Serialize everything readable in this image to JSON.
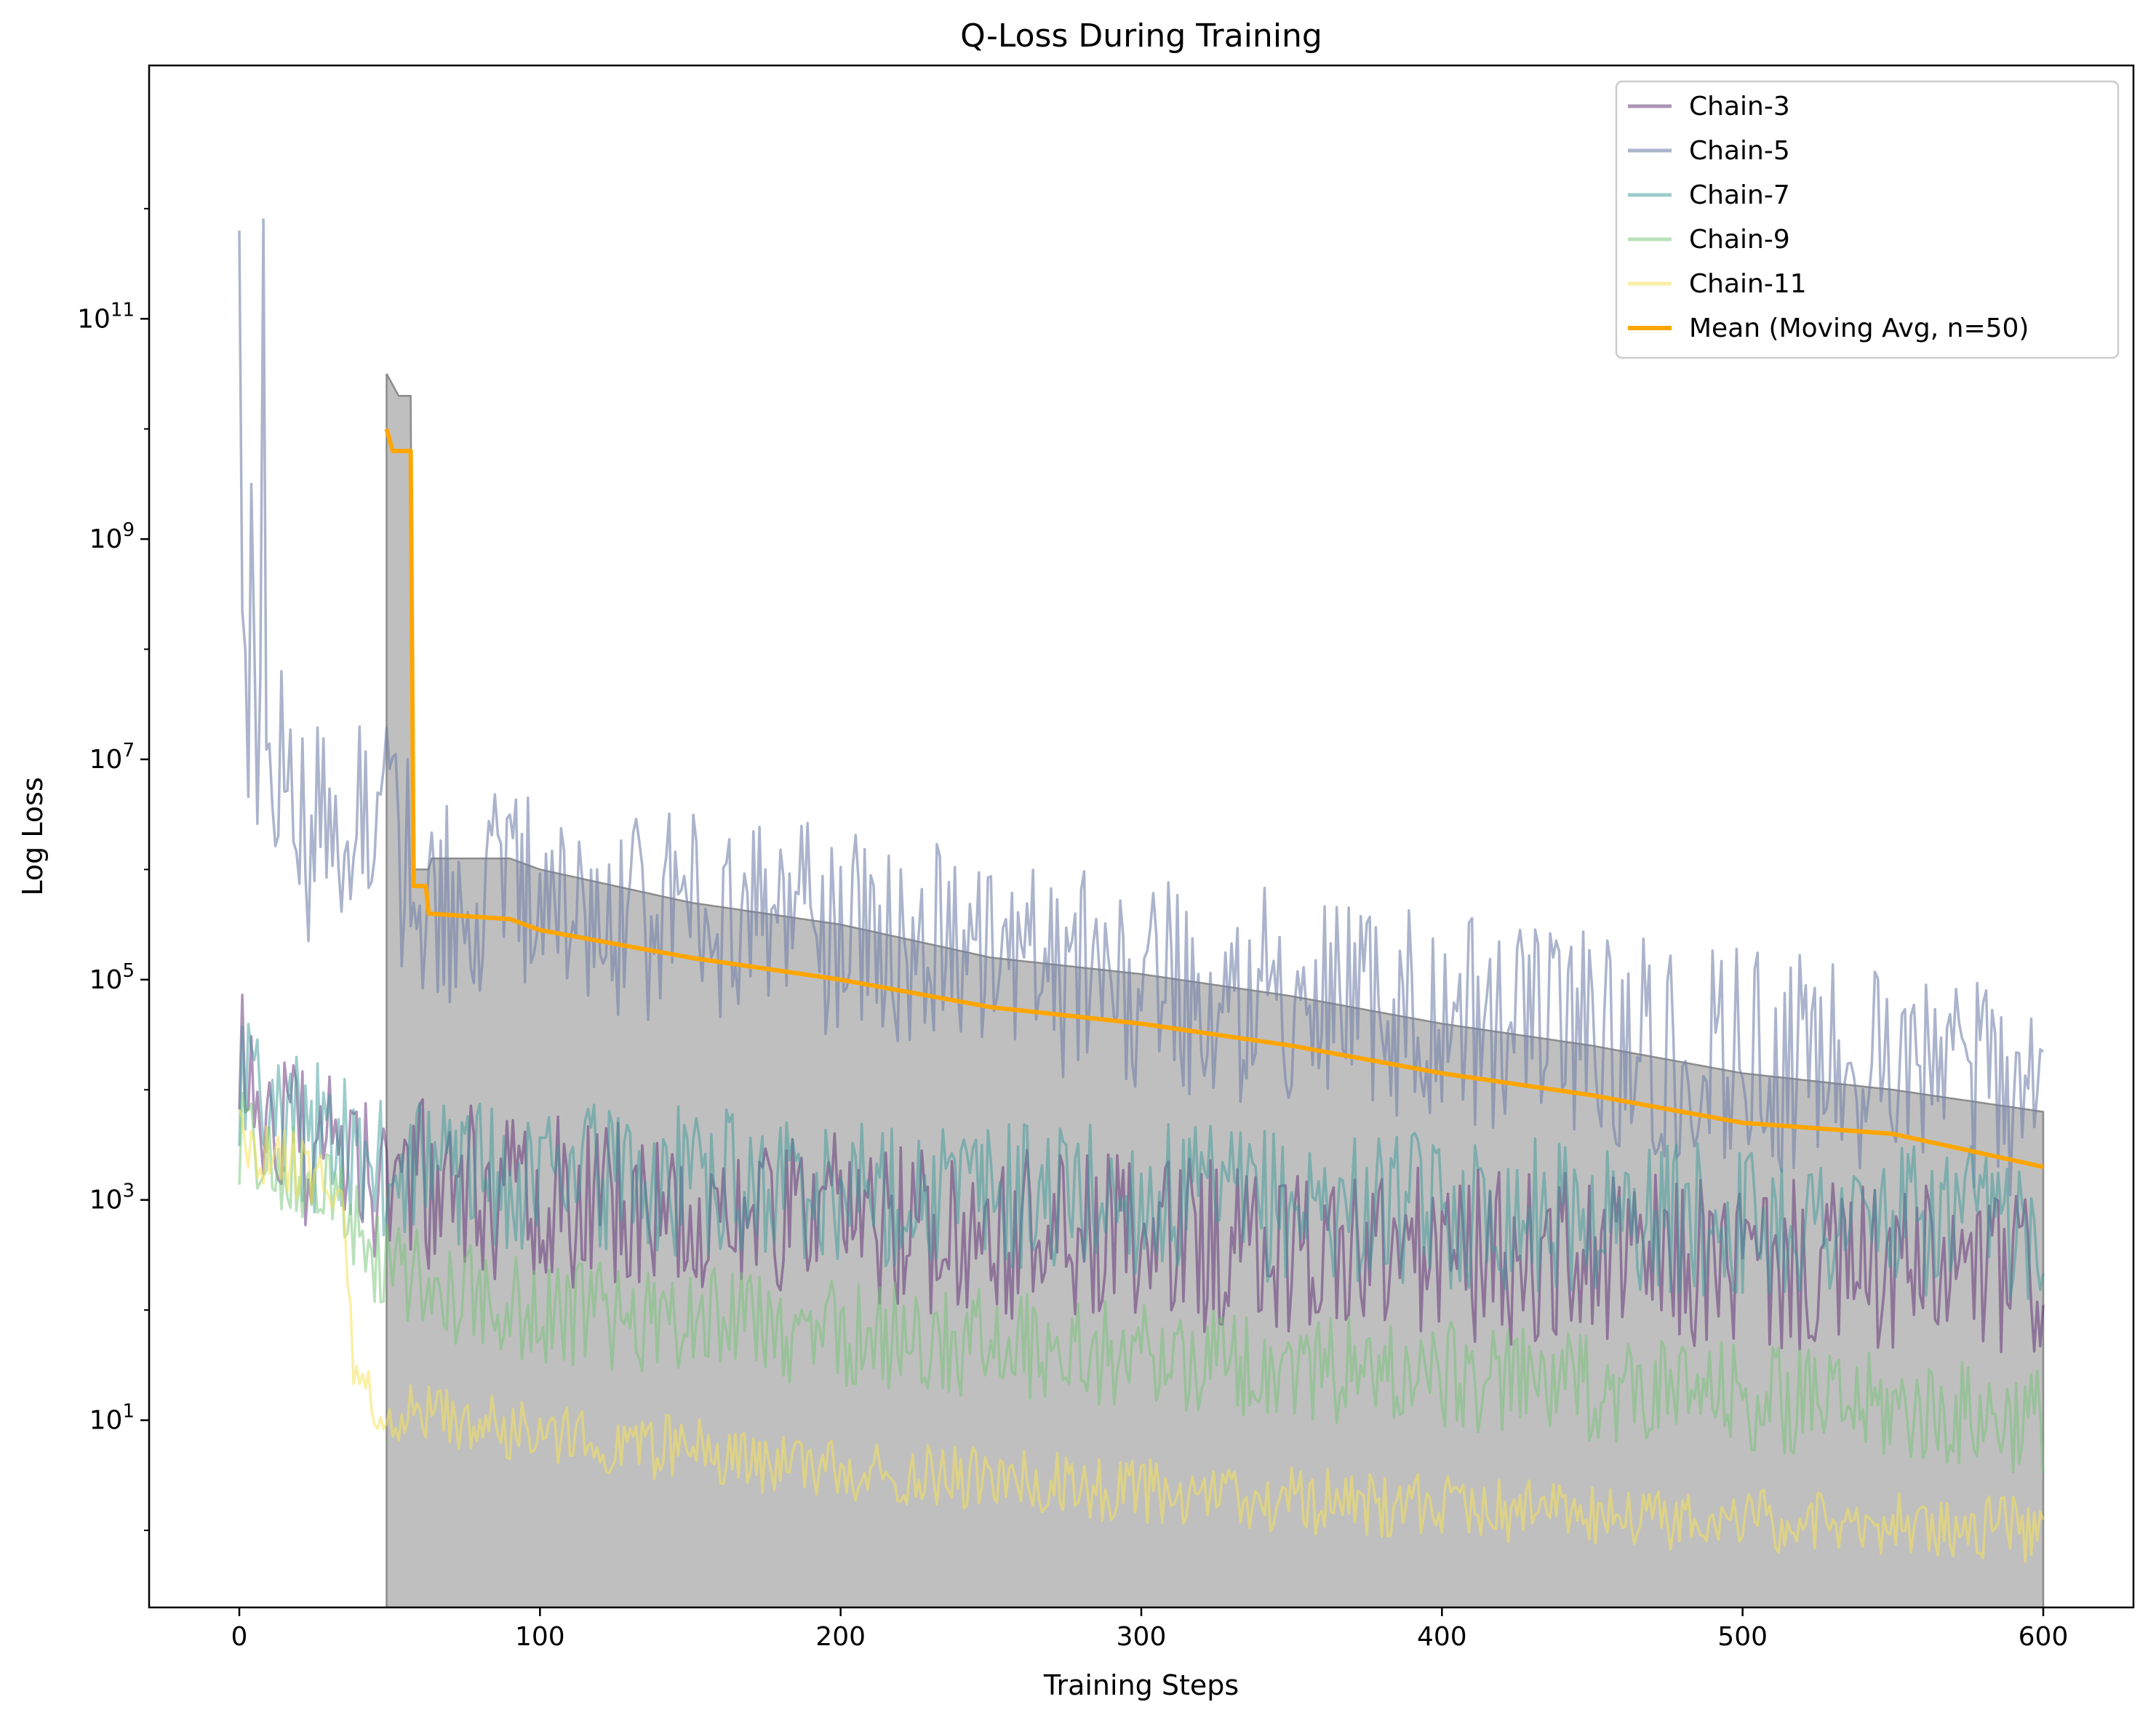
{
  "chart_data": {
    "type": "line",
    "title": "Q-Loss During Training",
    "xlabel": "Training Steps",
    "ylabel": "Log Loss",
    "yscale": "log",
    "xlim": [
      -30,
      630
    ],
    "ylim_log10": [
      -0.7,
      13.3
    ],
    "xticks": [
      {
        "value": 0,
        "label": "0"
      },
      {
        "value": 100,
        "label": "100"
      },
      {
        "value": 200,
        "label": "200"
      },
      {
        "value": 300,
        "label": "300"
      },
      {
        "value": 400,
        "label": "400"
      },
      {
        "value": 500,
        "label": "500"
      },
      {
        "value": 600,
        "label": "600"
      }
    ],
    "yticks": [
      {
        "log10": 1,
        "base": "10",
        "exp": "1"
      },
      {
        "log10": 3,
        "base": "10",
        "exp": "3"
      },
      {
        "log10": 5,
        "base": "10",
        "exp": "5"
      },
      {
        "log10": 7,
        "base": "10",
        "exp": "7"
      },
      {
        "log10": 9,
        "base": "10",
        "exp": "9"
      },
      {
        "log10": 11,
        "base": "10",
        "exp": "11"
      }
    ],
    "grid": false,
    "legend_position": "top-right",
    "series": [
      {
        "name": "Chain-3",
        "color": "#5e2a73",
        "alpha": 0.5,
        "log10_trend": [
          [
            0,
            4.1
          ],
          [
            20,
            3.6
          ],
          [
            40,
            3.2
          ],
          [
            100,
            3.0
          ],
          [
            200,
            2.8
          ],
          [
            300,
            2.6
          ],
          [
            400,
            2.5
          ],
          [
            500,
            2.4
          ],
          [
            600,
            2.3
          ]
        ],
        "log10_spread": 0.8,
        "seed": 3
      },
      {
        "name": "Chain-5",
        "color": "#7382aa",
        "alpha": 0.6,
        "log10_trend": [
          [
            0,
            7.5
          ],
          [
            20,
            6.3
          ],
          [
            45,
            6.5
          ],
          [
            60,
            5.8
          ],
          [
            100,
            5.7
          ],
          [
            200,
            5.4
          ],
          [
            300,
            5.0
          ],
          [
            400,
            4.6
          ],
          [
            500,
            4.3
          ],
          [
            600,
            3.9
          ]
        ],
        "log10_spread": 1.0,
        "seed": 5,
        "spikes": [
          [
            0,
            11.8
          ],
          [
            8,
            11.9
          ],
          [
            4,
            9.5
          ],
          [
            14,
            7.8
          ],
          [
            56,
            7.0
          ]
        ]
      },
      {
        "name": "Chain-7",
        "color": "#3c9a9a",
        "alpha": 0.5,
        "log10_trend": [
          [
            0,
            4.0
          ],
          [
            30,
            3.5
          ],
          [
            50,
            3.3
          ],
          [
            100,
            3.2
          ],
          [
            200,
            3.1
          ],
          [
            300,
            3.0
          ],
          [
            400,
            2.9
          ],
          [
            500,
            2.8
          ],
          [
            600,
            2.8
          ]
        ],
        "log10_spread": 0.7,
        "seed": 7
      },
      {
        "name": "Chain-9",
        "color": "#74c476",
        "alpha": 0.5,
        "log10_trend": [
          [
            0,
            3.6
          ],
          [
            30,
            3.2
          ],
          [
            50,
            2.3
          ],
          [
            100,
            2.0
          ],
          [
            200,
            1.8
          ],
          [
            300,
            1.6
          ],
          [
            400,
            1.4
          ],
          [
            500,
            1.2
          ],
          [
            600,
            1.0
          ]
        ],
        "log10_spread": 0.5,
        "seed": 9
      },
      {
        "name": "Chain-11",
        "color": "#f5e15a",
        "alpha": 0.55,
        "log10_trend": [
          [
            0,
            3.55
          ],
          [
            35,
            3.1
          ],
          [
            38,
            1.3
          ],
          [
            50,
            1.05
          ],
          [
            100,
            0.9
          ],
          [
            200,
            0.55
          ],
          [
            300,
            0.35
          ],
          [
            400,
            0.2
          ],
          [
            500,
            0.1
          ],
          [
            600,
            0.0
          ]
        ],
        "log10_spread": 0.3,
        "seed": 11
      },
      {
        "name": "Mean (Moving Avg, n=50)",
        "color": "#ffa500",
        "alpha": 1.0,
        "log10_points": [
          [
            49,
            10.0
          ],
          [
            51,
            9.8
          ],
          [
            57,
            9.8
          ],
          [
            58,
            5.85
          ],
          [
            62,
            5.85
          ],
          [
            63,
            5.6
          ],
          [
            90,
            5.55
          ],
          [
            100,
            5.45
          ],
          [
            150,
            5.2
          ],
          [
            200,
            5.0
          ],
          [
            250,
            4.75
          ],
          [
            300,
            4.6
          ],
          [
            350,
            4.4
          ],
          [
            400,
            4.15
          ],
          [
            450,
            3.95
          ],
          [
            500,
            3.7
          ],
          [
            550,
            3.6
          ],
          [
            600,
            3.3
          ]
        ]
      }
    ],
    "band": {
      "color": "#bfbfbf",
      "edge_color": "#8c8c8c",
      "log10_top": [
        [
          49,
          10.5
        ],
        [
          53,
          10.3
        ],
        [
          57,
          10.3
        ],
        [
          58,
          6.0
        ],
        [
          63,
          6.0
        ],
        [
          64,
          6.1
        ],
        [
          90,
          6.1
        ],
        [
          100,
          6.0
        ],
        [
          150,
          5.7
        ],
        [
          200,
          5.5
        ],
        [
          250,
          5.2
        ],
        [
          300,
          5.05
        ],
        [
          350,
          4.85
        ],
        [
          400,
          4.6
        ],
        [
          450,
          4.4
        ],
        [
          500,
          4.15
        ],
        [
          550,
          4.0
        ],
        [
          600,
          3.8
        ]
      ],
      "x_range": [
        49,
        600
      ]
    }
  }
}
